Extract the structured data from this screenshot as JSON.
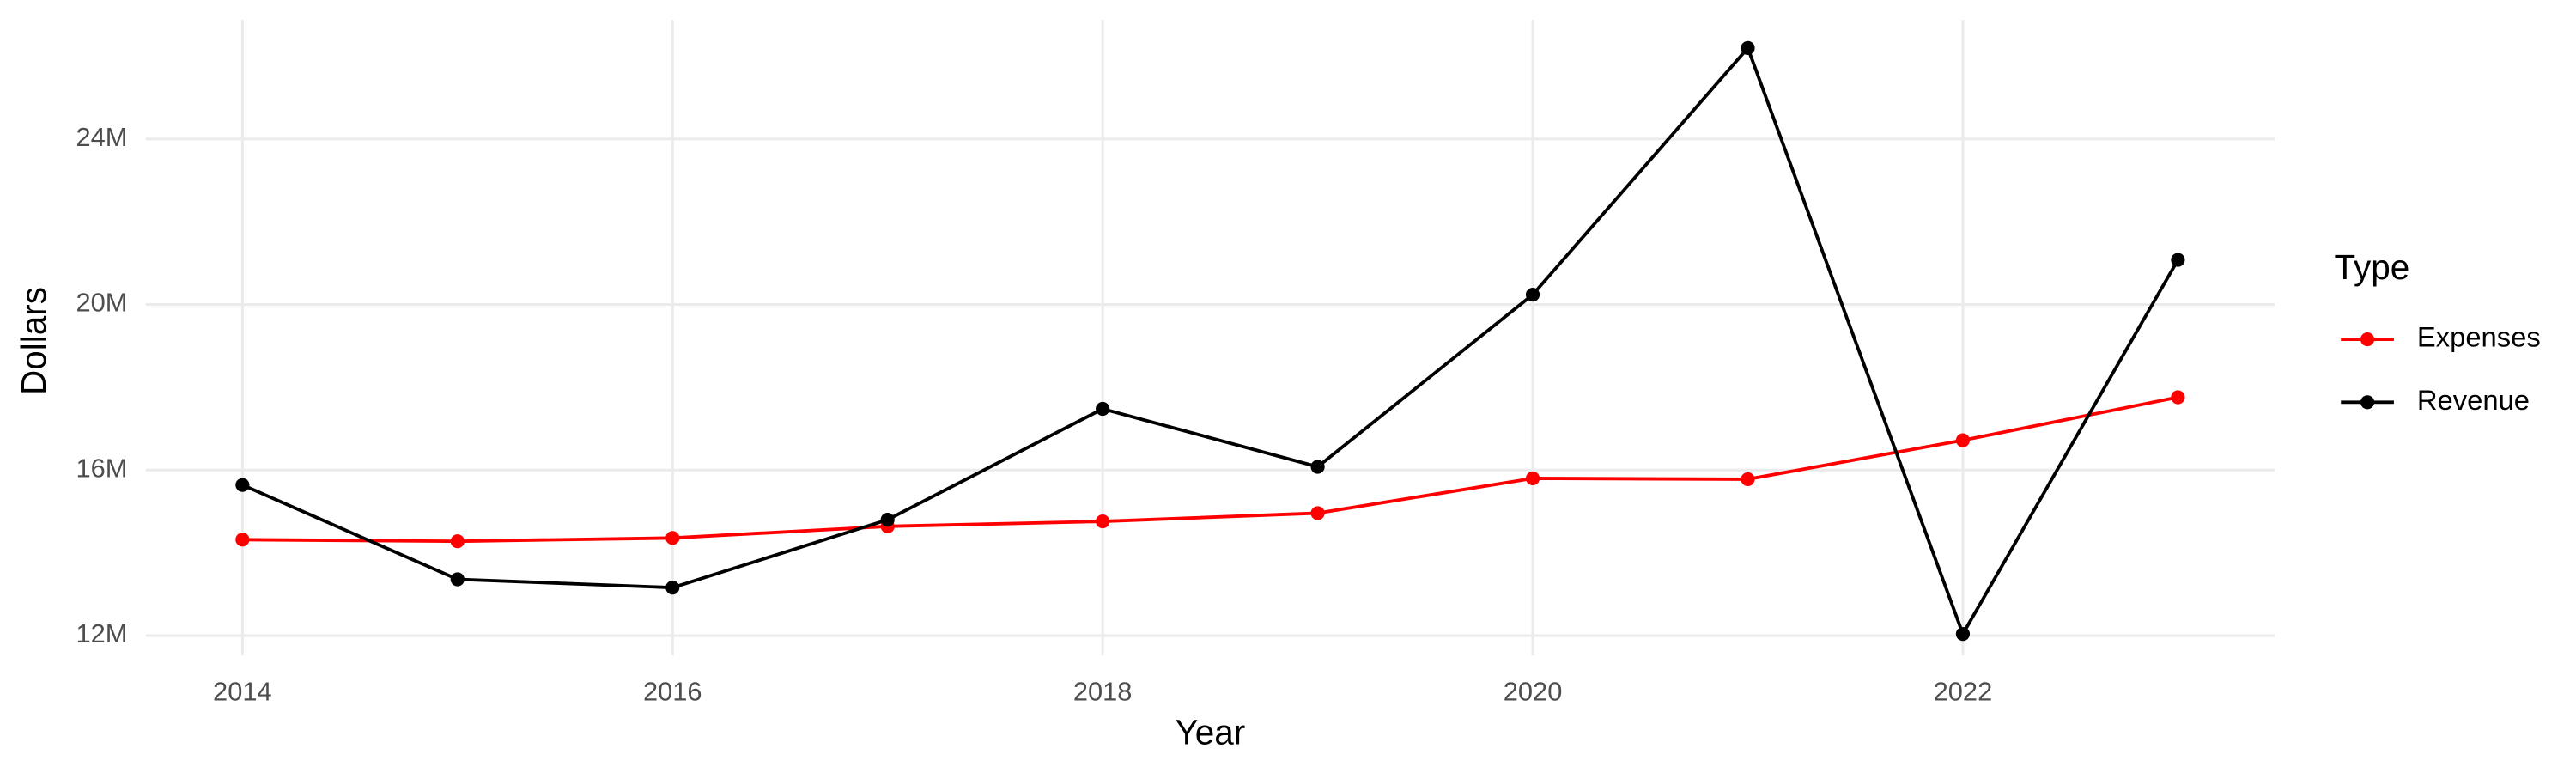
{
  "chart_data": {
    "type": "line",
    "x_label": "Year",
    "y_label": "Dollars",
    "x": [
      2014,
      2015,
      2016,
      2017,
      2018,
      2019,
      2020,
      2021,
      2022,
      2023
    ],
    "series": [
      {
        "name": "Expenses",
        "color": "#ff0000",
        "values": [
          14320000,
          14280000,
          14360000,
          14640000,
          14760000,
          14960000,
          15800000,
          15780000,
          16720000,
          17760000
        ]
      },
      {
        "name": "Revenue",
        "color": "#000000",
        "values": [
          15640000,
          13360000,
          13160000,
          14800000,
          17480000,
          16080000,
          20240000,
          26200000,
          12040000,
          21080000
        ]
      }
    ],
    "xlim": [
      2013.55,
      2023.45
    ],
    "xticks": [
      2014,
      2016,
      2018,
      2020,
      2022
    ],
    "ylim": [
      11520000,
      26880000
    ],
    "yticks": [
      {
        "value": 12000000,
        "label": "12M"
      },
      {
        "value": 16000000,
        "label": "16M"
      },
      {
        "value": 20000000,
        "label": "20M"
      },
      {
        "value": 24000000,
        "label": "24M"
      }
    ],
    "grid": true,
    "legend_title": "Type",
    "legend_position": "right"
  }
}
